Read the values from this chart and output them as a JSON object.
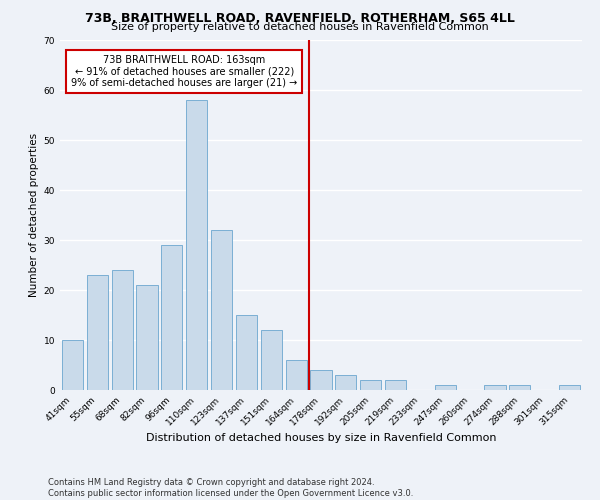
{
  "title": "73B, BRAITHWELL ROAD, RAVENFIELD, ROTHERHAM, S65 4LL",
  "subtitle": "Size of property relative to detached houses in Ravenfield Common",
  "xlabel": "Distribution of detached houses by size in Ravenfield Common",
  "ylabel": "Number of detached properties",
  "categories": [
    "41sqm",
    "55sqm",
    "68sqm",
    "82sqm",
    "96sqm",
    "110sqm",
    "123sqm",
    "137sqm",
    "151sqm",
    "164sqm",
    "178sqm",
    "192sqm",
    "205sqm",
    "219sqm",
    "233sqm",
    "247sqm",
    "260sqm",
    "274sqm",
    "288sqm",
    "301sqm",
    "315sqm"
  ],
  "values": [
    10,
    23,
    24,
    21,
    29,
    58,
    32,
    15,
    12,
    6,
    4,
    3,
    2,
    2,
    0,
    1,
    0,
    1,
    1,
    0,
    1
  ],
  "bar_color": "#c9daea",
  "bar_edge_color": "#7bafd4",
  "vline_x_index": 9,
  "vline_color": "#cc0000",
  "annotation_text": "73B BRAITHWELL ROAD: 163sqm\n← 91% of detached houses are smaller (222)\n9% of semi-detached houses are larger (21) →",
  "annotation_box_color": "#cc0000",
  "ylim": [
    0,
    70
  ],
  "yticks": [
    0,
    10,
    20,
    30,
    40,
    50,
    60,
    70
  ],
  "footer": "Contains HM Land Registry data © Crown copyright and database right 2024.\nContains public sector information licensed under the Open Government Licence v3.0.",
  "bg_color": "#eef2f8",
  "grid_color": "#ffffff",
  "title_fontsize": 9,
  "subtitle_fontsize": 8,
  "xlabel_fontsize": 8,
  "ylabel_fontsize": 7.5,
  "tick_fontsize": 6.5,
  "footer_fontsize": 6,
  "annotation_fontsize": 7
}
